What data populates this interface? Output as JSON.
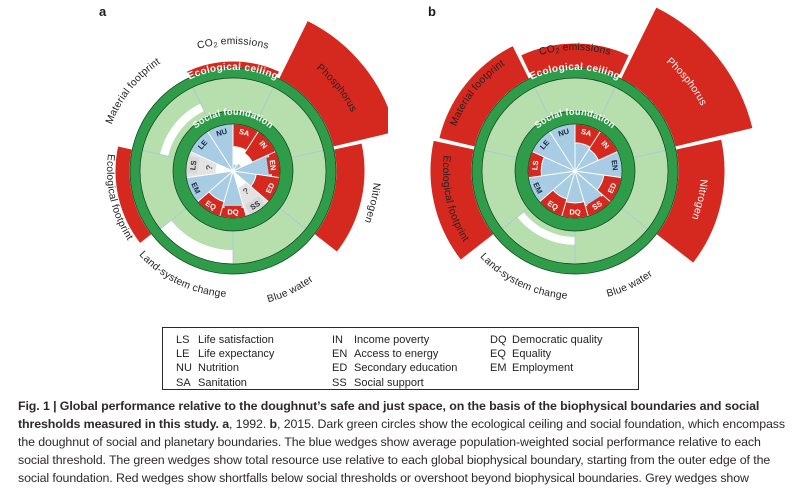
{
  "figure": {
    "panel_letters": [
      "a",
      "b"
    ],
    "ring_labels": {
      "ceiling": "Ecological ceiling",
      "foundation": "Social foundation"
    },
    "missing_symbol": "?",
    "colors": {
      "red": "#d5281e",
      "dark_green": "#2e9c49",
      "light_green": "#b6dfad",
      "blue": "#a8cce3",
      "grey_wedge": "#e3e3e3",
      "grey_box": "#d8d8d8",
      "ring_outline": "#0f3d1c",
      "divider": "#a8c8d6",
      "navy_text": "#182844",
      "grey_text": "#595959",
      "label_text": "#262223",
      "white": "#ffffff"
    },
    "layout": {
      "social_r": 47,
      "foundation_r": [
        47,
        60
      ],
      "annulus_r": [
        60,
        93
      ],
      "ceiling_r": [
        93,
        103
      ],
      "social_order_clockwise_from_top": [
        "SA",
        "IN",
        "EN",
        "ED",
        "SS",
        "DQ",
        "EQ",
        "EM",
        "LS",
        "LE",
        "NU"
      ],
      "social_span_deg": 32.727,
      "ecological_span_deg": 51.43
    }
  },
  "chart_data": [
    {
      "type": "doughnut",
      "panel": "a",
      "year": 1992,
      "center": [
        205,
        165
      ],
      "ecological": [
        {
          "key": "co2",
          "label": "CO₂ emissions",
          "a0": 244.29,
          "a1": 295.71,
          "angle": 270,
          "green": [
            [
              0,
              1
            ]
          ],
          "red_outer": 110,
          "label_r": 127,
          "label_color": "#262223",
          "dir": "cw"
        },
        {
          "key": "phosphorus",
          "label": "Phosphorus",
          "a0": 295.71,
          "a1": 347.14,
          "angle": 321.4,
          "green": [
            [
              0,
              1
            ]
          ],
          "red_outer": 168,
          "label_r": 132,
          "label_color": "#262223",
          "dir": "cw"
        },
        {
          "key": "nitrogen",
          "label": "Nitrogen",
          "a0": -12.86,
          "a1": 38.57,
          "angle": 12.9,
          "green": [
            [
              0,
              1
            ]
          ],
          "red_outer": 132,
          "label_r": 141,
          "label_color": "#262223",
          "dir": "cw"
        },
        {
          "key": "blue-water",
          "label": "Blue water",
          "a0": 38.57,
          "a1": 90,
          "angle": 64.3,
          "green": [
            [
              0,
              1
            ]
          ],
          "red_outer": null,
          "label_r": 136,
          "label_color": "#262223",
          "dir": "ccw"
        },
        {
          "key": "land-system-change",
          "label": "Land-system change",
          "a0": 90,
          "a1": 141.43,
          "angle": 115.7,
          "green": [
            [
              0,
              0.58
            ]
          ],
          "red_outer": null,
          "label_r": 126,
          "label_color": "#262223",
          "dir": "ccw"
        },
        {
          "key": "ecological-footprint",
          "label": "Ecological footprint",
          "a0": 141.43,
          "a1": 192.86,
          "angle": 167.1,
          "green": [
            [
              0,
              1
            ]
          ],
          "red_outer": 118,
          "label_r": 126,
          "label_color": "#262223",
          "dir": "ccw"
        },
        {
          "key": "material-footprint",
          "label": "Material footprint",
          "a0": 192.86,
          "a1": 244.29,
          "angle": 218.6,
          "green": [
            [
              0,
              0.2
            ],
            [
              0.45,
              1
            ]
          ],
          "red_outer": null,
          "label_r": 130,
          "label_color": "#262223",
          "dir": "cw"
        }
      ],
      "social": [
        {
          "code": "SA",
          "box": "red",
          "blue": 0.15,
          "red_from": 0.52,
          "missing": false
        },
        {
          "code": "IN",
          "box": "red",
          "blue": 0.2,
          "red_from": 0.45,
          "missing": false
        },
        {
          "code": "EN",
          "box": "red",
          "blue": 0.82,
          "red_from": 0.82,
          "missing": false
        },
        {
          "code": "ED",
          "box": "red",
          "blue": 0.5,
          "red_from": 0.5,
          "missing": false
        },
        {
          "code": "SS",
          "box": "grey",
          "blue": null,
          "red_from": null,
          "missing": true
        },
        {
          "code": "DQ",
          "box": "red",
          "blue": 0.8,
          "red_from": 0.8,
          "missing": false
        },
        {
          "code": "EQ",
          "box": "red",
          "blue": 0.68,
          "red_from": 0.68,
          "missing": false
        },
        {
          "code": "EM",
          "box": "blue",
          "blue": 1,
          "red_from": null,
          "missing": false
        },
        {
          "code": "LS",
          "box": "grey",
          "blue": null,
          "red_from": null,
          "missing": true
        },
        {
          "code": "LE",
          "box": "blue",
          "blue": 1,
          "red_from": null,
          "missing": false
        },
        {
          "code": "NU",
          "box": "blue",
          "blue": 1,
          "red_from": null,
          "missing": false
        }
      ]
    },
    {
      "type": "doughnut",
      "panel": "b",
      "year": 2015,
      "center": [
        190,
        165
      ],
      "ecological": [
        {
          "key": "co2",
          "label": "CO₂ emissions",
          "a0": 244.29,
          "a1": 295.71,
          "angle": 270,
          "green": [
            [
              0,
              1
            ]
          ],
          "red_outer": 128,
          "label_r": 121,
          "label_color": "#262223",
          "dir": "cw"
        },
        {
          "key": "phosphorus",
          "label": "Phosphorus",
          "a0": 295.71,
          "a1": 347.14,
          "angle": 321.4,
          "green": [
            [
              0,
              1
            ]
          ],
          "red_outer": 183,
          "label_r": 142,
          "label_color": "#ffffff",
          "dir": "cw"
        },
        {
          "key": "nitrogen",
          "label": "Nitrogen",
          "a0": -12.86,
          "a1": 38.57,
          "angle": 12.9,
          "green": [
            [
              0,
              1
            ]
          ],
          "red_outer": 150,
          "label_r": 126,
          "label_color": "#ffffff",
          "dir": "cw"
        },
        {
          "key": "blue-water",
          "label": "Blue water",
          "a0": 38.57,
          "a1": 90,
          "angle": 64.3,
          "green": [
            [
              0,
              1
            ]
          ],
          "red_outer": null,
          "label_r": 130,
          "label_color": "#262223",
          "dir": "ccw"
        },
        {
          "key": "land-system-change",
          "label": "Land-system change",
          "a0": 90,
          "a1": 141.43,
          "angle": 115.7,
          "green": [
            [
              0,
              0.18
            ],
            [
              0.42,
              1
            ]
          ],
          "red_outer": null,
          "label_r": 128,
          "label_color": "#262223",
          "dir": "ccw"
        },
        {
          "key": "ecological-footprint",
          "label": "Ecological footprint",
          "a0": 141.43,
          "a1": 192.86,
          "angle": 167.1,
          "green": [
            [
              0,
              1
            ]
          ],
          "red_outer": 145,
          "label_r": 132,
          "label_color": "#262223",
          "dir": "ccw"
        },
        {
          "key": "material-footprint",
          "label": "Material footprint",
          "a0": 192.86,
          "a1": 244.29,
          "angle": 218.6,
          "green": [
            [
              0,
              1
            ]
          ],
          "red_outer": 140,
          "label_r": 127,
          "label_color": "#262223",
          "dir": "cw"
        }
      ],
      "social": [
        {
          "code": "SA",
          "box": "red",
          "blue": 0.6,
          "red_from": 0.6,
          "missing": false
        },
        {
          "code": "IN",
          "box": "red",
          "blue": 0.55,
          "red_from": 0.55,
          "missing": false
        },
        {
          "code": "EN",
          "box": "blue",
          "blue": 1,
          "red_from": null,
          "missing": false
        },
        {
          "code": "ED",
          "box": "red",
          "blue": 0.62,
          "red_from": 0.62,
          "missing": false
        },
        {
          "code": "SS",
          "box": "red",
          "blue": 0.78,
          "red_from": 0.78,
          "missing": false
        },
        {
          "code": "DQ",
          "box": "red",
          "blue": 0.68,
          "red_from": 0.68,
          "missing": false
        },
        {
          "code": "EQ",
          "box": "red",
          "blue": 0.62,
          "red_from": 0.62,
          "missing": false
        },
        {
          "code": "EM",
          "box": "blue",
          "blue": 1,
          "red_from": null,
          "missing": false
        },
        {
          "code": "LS",
          "box": "red",
          "blue": 0.72,
          "red_from": 0.72,
          "missing": false
        },
        {
          "code": "LE",
          "box": "blue",
          "blue": 1,
          "red_from": null,
          "missing": false
        },
        {
          "code": "NU",
          "box": "blue",
          "blue": 1,
          "red_from": null,
          "missing": false
        }
      ]
    }
  ],
  "legend": {
    "columns": [
      [
        {
          "code": "LS",
          "name": "Life satisfaction"
        },
        {
          "code": "LE",
          "name": "Life expectancy"
        },
        {
          "code": "NU",
          "name": "Nutrition"
        },
        {
          "code": "SA",
          "name": "Sanitation"
        }
      ],
      [
        {
          "code": "IN",
          "name": "Income poverty"
        },
        {
          "code": "EN",
          "name": "Access to energy"
        },
        {
          "code": "ED",
          "name": "Secondary education"
        },
        {
          "code": "SS",
          "name": "Social support"
        }
      ],
      [
        {
          "code": "DQ",
          "name": "Democratic quality"
        },
        {
          "code": "EQ",
          "name": "Equality"
        },
        {
          "code": "EM",
          "name": "Employment"
        }
      ]
    ]
  },
  "caption": {
    "segments": [
      {
        "text": "Fig. 1 | Global performance relative to the doughnut’s safe and just space, on the basis of the biophysical boundaries and social thresholds measured in this study. ",
        "bold": true
      },
      {
        "text": "a",
        "bold": true
      },
      {
        "text": ", 1992. ",
        "bold": false
      },
      {
        "text": "b",
        "bold": true
      },
      {
        "text": ", 2015. Dark green circles show the ecological ceiling and social foundation, which encompass the doughnut of social and planetary boundaries. The blue wedges show average population-weighted social performance relative to each social threshold. The green wedges show total resource use relative to each global biophysical boundary, starting from the outer edge of the social foundation. Red wedges show shortfalls below social thresholds or overshoot beyond biophysical boundaries. Grey wedges show indicators with missing data.",
        "bold": false
      }
    ]
  }
}
